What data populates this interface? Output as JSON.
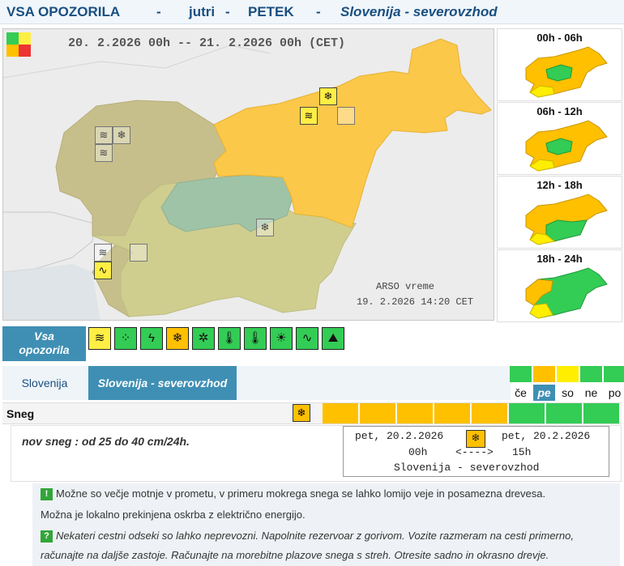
{
  "header": {
    "title": "VSA OPOZORILA",
    "sep1": "-",
    "day_word": "jutri",
    "sep2": "-",
    "day_name": "PETEK",
    "sep3": "-",
    "region": "Slovenija - severovzhod"
  },
  "main_map": {
    "period": "20. 2.2026  00h  --  21. 2.2026  00h   (CET)",
    "credit_line1": "ARSO vreme",
    "credit_line2": "19. 2.2026  14:20 CET"
  },
  "small_maps": [
    {
      "label": "00h - 06h"
    },
    {
      "label": "06h - 12h"
    },
    {
      "label": "12h - 18h"
    },
    {
      "label": "18h - 24h"
    }
  ],
  "warnings_nav": {
    "all_label_line1": "Vsa",
    "all_label_line2": "opozorila",
    "icons": [
      {
        "name": "wind-sock-icon",
        "glyph": "≋",
        "color": "#ffee44"
      },
      {
        "name": "rain-icon",
        "glyph": "⁘",
        "color": "#33cc55"
      },
      {
        "name": "thunderstorm-icon",
        "glyph": "ϟ",
        "color": "#33cc55"
      },
      {
        "name": "snow-icon",
        "glyph": "❄",
        "color": "#ffc000"
      },
      {
        "name": "ice-icon",
        "glyph": "✲",
        "color": "#33cc55"
      },
      {
        "name": "low-temperature-icon",
        "glyph": "🌡",
        "color": "#33cc55"
      },
      {
        "name": "high-temperature-icon",
        "glyph": "🌡",
        "color": "#33cc55"
      },
      {
        "name": "fire-danger-icon",
        "glyph": "☀",
        "color": "#33cc55"
      },
      {
        "name": "coastal-icon",
        "glyph": "∿",
        "color": "#33cc55"
      },
      {
        "name": "avalanche-icon",
        "glyph": "⛰",
        "color": "#33cc55"
      }
    ]
  },
  "regions": {
    "slovenia": "Slovenija",
    "selected": "Slovenija - severovzhod"
  },
  "days": [
    {
      "label": "če",
      "color": "#33cc55"
    },
    {
      "label": "pe",
      "color": "#ffc000",
      "active": true
    },
    {
      "label": "so",
      "color": "#ffee00"
    },
    {
      "label": "ne",
      "color": "#33cc55"
    },
    {
      "label": "po",
      "color": "#33cc55"
    }
  ],
  "hazard": {
    "name": "Sneg",
    "hour_colors": [
      "#ffc000",
      "#ffc000",
      "#ffc000",
      "#ffc000",
      "#ffc000",
      "#33cc55",
      "#33cc55",
      "#33cc55"
    ],
    "description": "nov sneg : od 25 do 40 cm/24h.",
    "time_from_date": "pet, 20.2.2026",
    "time_to_date": "pet, 20.2.2026",
    "time_from_hour": "00h",
    "time_arrow": "<---->",
    "time_to_hour": "15h",
    "time_region": "Slovenija - severovzhod"
  },
  "info": {
    "warning_mark": "!",
    "warning_line1": "Možne so večje motnje v prometu, v primeru mokrega snega se lahko lomijo veje in posamezna drevesa.",
    "warning_line2": "Možna je lokalno prekinjena oskrba z električno energijo.",
    "advice_mark": "?",
    "advice_line1": "Nekateri cestni odseki so lahko neprevozni. Napolnite rezervoar z gorivom. Vozite razmeram na cesti primerno,",
    "advice_line2": "računajte na daljše zastoje. Računajte na morebitne plazove snega s streh. Otresite sadno in okrasno drevje."
  },
  "colors": {
    "orange": "#ffc000",
    "yellow": "#ffee00",
    "green": "#33cc55",
    "accent_blue": "#3f8fb4",
    "title_blue": "#1a4f80"
  }
}
